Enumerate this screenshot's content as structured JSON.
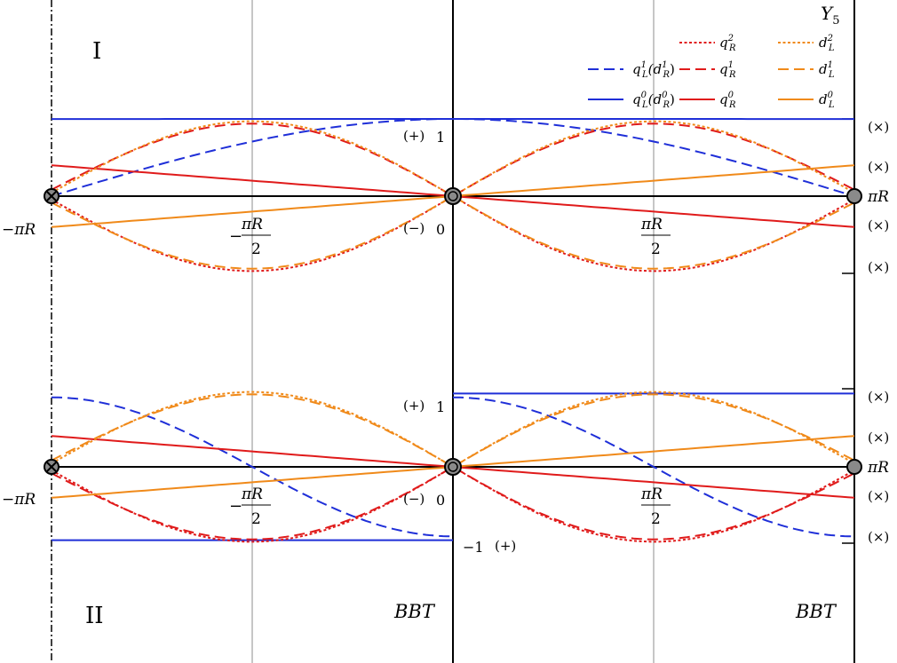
{
  "colors": {
    "blue": "#1f2fd8",
    "red": "#e01b1b",
    "orange": "#f08a1a",
    "axis": "#000000",
    "grid": "#8c8c8c",
    "node_fill": "#8a8a8a"
  },
  "labels": {
    "y5": "Y",
    "y5_sub": "5",
    "panel_i": "I",
    "panel_ii": "II",
    "bbt_left": "BBT",
    "bbt_right": "BBT",
    "minus_pi_r": "−πR",
    "pi_r": "πR",
    "plus_sign": "(+)",
    "minus_sign": "(−)",
    "times_sign": "(×)",
    "one": "1",
    "zero": "0",
    "minus_one": "−1",
    "pi_r_over": "πR",
    "two": "2",
    "neg": "−"
  },
  "legend": [
    {
      "name": "q_R^2",
      "base": "q",
      "sub": "R",
      "sup": "2",
      "color": "red",
      "dash": "dotted"
    },
    {
      "name": "d_L^2",
      "base": "d",
      "sub": "L",
      "sup": "2",
      "color": "orange",
      "dash": "dotted"
    },
    {
      "name": "q_L^1(d_R^1)",
      "base": "q",
      "sub": "L",
      "sup": "1",
      "extra": "(d",
      "extra_sub": "R",
      "extra_sup": "1",
      "extra_close": ")",
      "color": "blue",
      "dash": "dashed"
    },
    {
      "name": "q_R^1",
      "base": "q",
      "sub": "R",
      "sup": "1",
      "color": "red",
      "dash": "dashed"
    },
    {
      "name": "d_L^1",
      "base": "d",
      "sub": "L",
      "sup": "1",
      "color": "orange",
      "dash": "dashed"
    },
    {
      "name": "q_L^0(d_R^0)",
      "base": "q",
      "sub": "L",
      "sup": "0",
      "extra": "(d",
      "extra_sub": "R",
      "extra_sup": "0",
      "extra_close": ")",
      "color": "blue",
      "dash": "solid"
    },
    {
      "name": "q_R^0",
      "base": "q",
      "sub": "R",
      "sup": "0",
      "color": "red",
      "dash": "solid"
    },
    {
      "name": "d_L^0",
      "base": "d",
      "sub": "L",
      "sup": "0",
      "color": "orange",
      "dash": "solid"
    }
  ],
  "chart_data": [
    {
      "type": "line",
      "panel": "I",
      "x_range": [
        -1,
        1
      ],
      "y_range": [
        -1,
        1
      ],
      "x_ticks": [
        "−πR",
        "−πR/2",
        "0",
        "πR/2",
        "πR"
      ],
      "series": [
        {
          "name": "q_L^0(d_R^0)",
          "color": "blue",
          "dash": "solid",
          "segments": [
            {
              "domain": [
                -1,
                1
              ],
              "fn": "cos",
              "k": 0.1,
              "amp": 1
            }
          ]
        },
        {
          "name": "q_L^1(d_R^1)",
          "color": "blue",
          "dash": "dashed",
          "segments": [
            {
              "domain": [
                -1,
                1
              ],
              "fn": "cos",
              "k": 1,
              "amp": 1
            }
          ]
        },
        {
          "name": "q_R^0",
          "color": "red",
          "dash": "solid",
          "segments": [
            {
              "domain": [
                -1,
                1
              ],
              "fn": "lin",
              "amp": -0.4
            }
          ]
        },
        {
          "name": "q_R^1",
          "color": "red",
          "dash": "dashed",
          "segments": [
            {
              "domain": [
                -1,
                1
              ],
              "fn": "sin",
              "k": 2,
              "amp": 1,
              "phase": 0.2
            }
          ]
        },
        {
          "name": "q_R^2",
          "color": "red",
          "dash": "dotted",
          "segments": [
            {
              "domain": [
                -1,
                1
              ],
              "fn": "sin",
              "k": 2,
              "amp": -1,
              "phase": 0.1
            }
          ]
        },
        {
          "name": "d_L^0",
          "color": "orange",
          "dash": "solid",
          "segments": [
            {
              "domain": [
                -1,
                1
              ],
              "fn": "lin",
              "amp": 0.4
            }
          ]
        },
        {
          "name": "d_L^1",
          "color": "orange",
          "dash": "dashed",
          "segments": [
            {
              "domain": [
                -1,
                1
              ],
              "fn": "sin",
              "k": 2,
              "amp": -1,
              "phase": 0.2
            }
          ]
        },
        {
          "name": "d_L^2",
          "color": "orange",
          "dash": "dotted",
          "segments": [
            {
              "domain": [
                -1,
                1
              ],
              "fn": "sin",
              "k": 2,
              "amp": 1,
              "phase": 0.1
            }
          ]
        }
      ]
    },
    {
      "type": "line",
      "panel": "II",
      "x_range": [
        -1,
        1
      ],
      "y_range": [
        -1,
        1
      ],
      "x_ticks": [
        "−πR",
        "−πR/2",
        "0",
        "πR/2",
        "πR"
      ],
      "series": [
        {
          "name": "q_L^0(d_R^0)",
          "color": "blue",
          "dash": "solid",
          "segments": [
            {
              "domain": [
                -1,
                0
              ],
              "fn": "const",
              "amp": -0.95
            },
            {
              "domain": [
                0,
                1
              ],
              "fn": "const",
              "amp": 0.95
            }
          ]
        },
        {
          "name": "q_L^1(d_R^1)",
          "color": "blue",
          "dash": "dashed",
          "segments": [
            {
              "domain": [
                -1,
                0
              ],
              "fn": "sinh",
              "amp": -0.9
            },
            {
              "domain": [
                0,
                1
              ],
              "fn": "sinh",
              "amp": -0.9
            }
          ]
        },
        {
          "name": "q_R^0",
          "color": "red",
          "dash": "solid",
          "segments": [
            {
              "domain": [
                -1,
                1
              ],
              "fn": "lin",
              "amp": -0.4
            }
          ]
        },
        {
          "name": "q_R^1",
          "color": "red",
          "dash": "dashed",
          "segments": [
            {
              "domain": [
                -1,
                1
              ],
              "fn": "sin",
              "k": 2,
              "amp": -1,
              "phase": 0.2
            }
          ]
        },
        {
          "name": "q_R^2",
          "color": "red",
          "dash": "dotted",
          "segments": [
            {
              "domain": [
                -1,
                1
              ],
              "fn": "sin",
              "k": 2,
              "amp": -1,
              "phase": 0.1
            }
          ]
        },
        {
          "name": "d_L^0",
          "color": "orange",
          "dash": "solid",
          "segments": [
            {
              "domain": [
                -1,
                1
              ],
              "fn": "lin",
              "amp": 0.4
            }
          ]
        },
        {
          "name": "d_L^1",
          "color": "orange",
          "dash": "dashed",
          "segments": [
            {
              "domain": [
                -1,
                1
              ],
              "fn": "sin",
              "k": 2,
              "amp": 1,
              "phase": 0.2
            }
          ]
        },
        {
          "name": "d_L^2",
          "color": "orange",
          "dash": "dotted",
          "segments": [
            {
              "domain": [
                -1,
                1
              ],
              "fn": "sin",
              "k": 2,
              "amp": 1,
              "phase": 0.1
            }
          ]
        }
      ]
    }
  ]
}
